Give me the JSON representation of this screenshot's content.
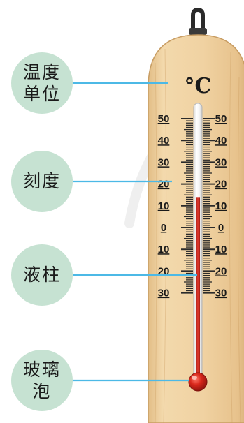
{
  "labels": {
    "unit": "温度单位",
    "scale": "刻度",
    "liquid_column": "液柱",
    "glass_bulb": "玻璃泡"
  },
  "unit_symbol": "°C",
  "scale_labels": [
    "50",
    "40",
    "30",
    "20",
    "10",
    "0",
    "10",
    "20",
    "30"
  ],
  "reading_celsius": 14,
  "colors": {
    "callout_fill": "#c6e2d2",
    "leader_line": "#4cb9e6",
    "wood": "#eed0a0",
    "liquid": "#c8241c"
  }
}
